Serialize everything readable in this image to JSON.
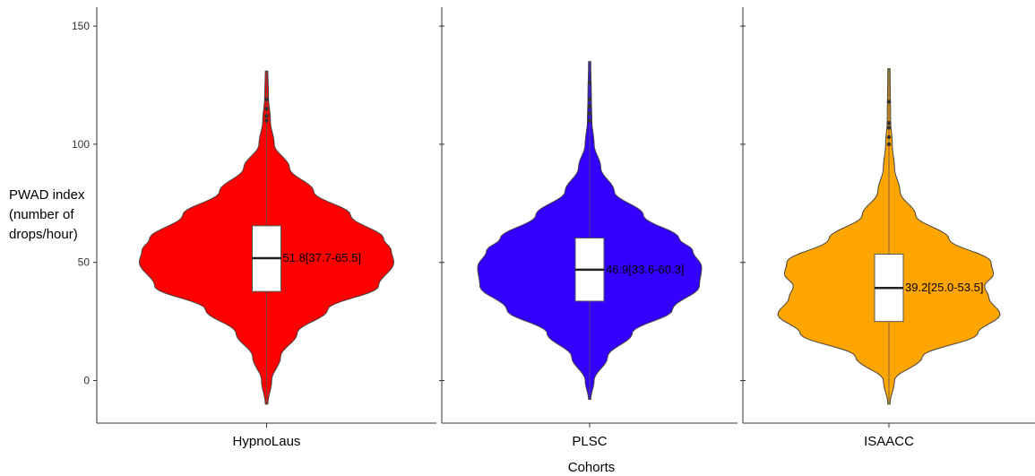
{
  "chart_data": {
    "type": "violin",
    "ylabel_lines": [
      "PWAD index",
      "(number of",
      "drops/hour)"
    ],
    "xlabel": "Cohorts",
    "ylim": [
      -18,
      158
    ],
    "yticks": [
      0,
      50,
      100,
      150
    ],
    "grid": false,
    "categories": [
      "HypnoLaus",
      "PLSC",
      "ISAACC"
    ],
    "colors": [
      "#ff0000",
      "#3300ff",
      "#ffa500"
    ],
    "series": [
      {
        "category": "HypnoLaus",
        "median": 51.8,
        "q1": 37.7,
        "q3": 65.5,
        "annotation": "51.8[37.7-65.5]",
        "whisker_min": -10,
        "whisker_max": 131,
        "outliers": [
          110,
          112,
          115,
          119
        ],
        "density": [
          [
            -10,
            1
          ],
          [
            0,
            4
          ],
          [
            10,
            11
          ],
          [
            20,
            24
          ],
          [
            30,
            48
          ],
          [
            40,
            88
          ],
          [
            50,
            100
          ],
          [
            55,
            98
          ],
          [
            60,
            92
          ],
          [
            70,
            66
          ],
          [
            80,
            37
          ],
          [
            90,
            18
          ],
          [
            100,
            6
          ],
          [
            110,
            3
          ],
          [
            120,
            1.5
          ],
          [
            131,
            1
          ]
        ]
      },
      {
        "category": "PLSC",
        "median": 46.9,
        "q1": 33.6,
        "q3": 60.3,
        "annotation": "46.9[33.6-60.3]",
        "whisker_min": -8,
        "whisker_max": 135,
        "outliers": [
          110,
          113,
          116,
          119,
          126
        ],
        "density": [
          [
            -8,
            1
          ],
          [
            0,
            4
          ],
          [
            10,
            16
          ],
          [
            20,
            38
          ],
          [
            30,
            74
          ],
          [
            40,
            98
          ],
          [
            48,
            100
          ],
          [
            55,
            92
          ],
          [
            60,
            80
          ],
          [
            70,
            48
          ],
          [
            80,
            22
          ],
          [
            90,
            10
          ],
          [
            100,
            4
          ],
          [
            110,
            2
          ],
          [
            120,
            1.5
          ],
          [
            135,
            1
          ]
        ]
      },
      {
        "category": "ISAACC",
        "median": 39.2,
        "q1": 25.0,
        "q3": 53.5,
        "annotation": "39.2[25.0-53.5]",
        "whisker_min": -10,
        "whisker_max": 132,
        "outliers": [
          100,
          103,
          107,
          109,
          118
        ],
        "density": [
          [
            -10,
            1
          ],
          [
            0,
            5
          ],
          [
            10,
            30
          ],
          [
            20,
            80
          ],
          [
            28,
            100
          ],
          [
            35,
            90
          ],
          [
            40,
            86
          ],
          [
            45,
            94
          ],
          [
            50,
            92
          ],
          [
            60,
            54
          ],
          [
            70,
            24
          ],
          [
            80,
            10
          ],
          [
            90,
            5
          ],
          [
            100,
            3
          ],
          [
            110,
            1.5
          ],
          [
            132,
            1
          ]
        ]
      }
    ]
  }
}
